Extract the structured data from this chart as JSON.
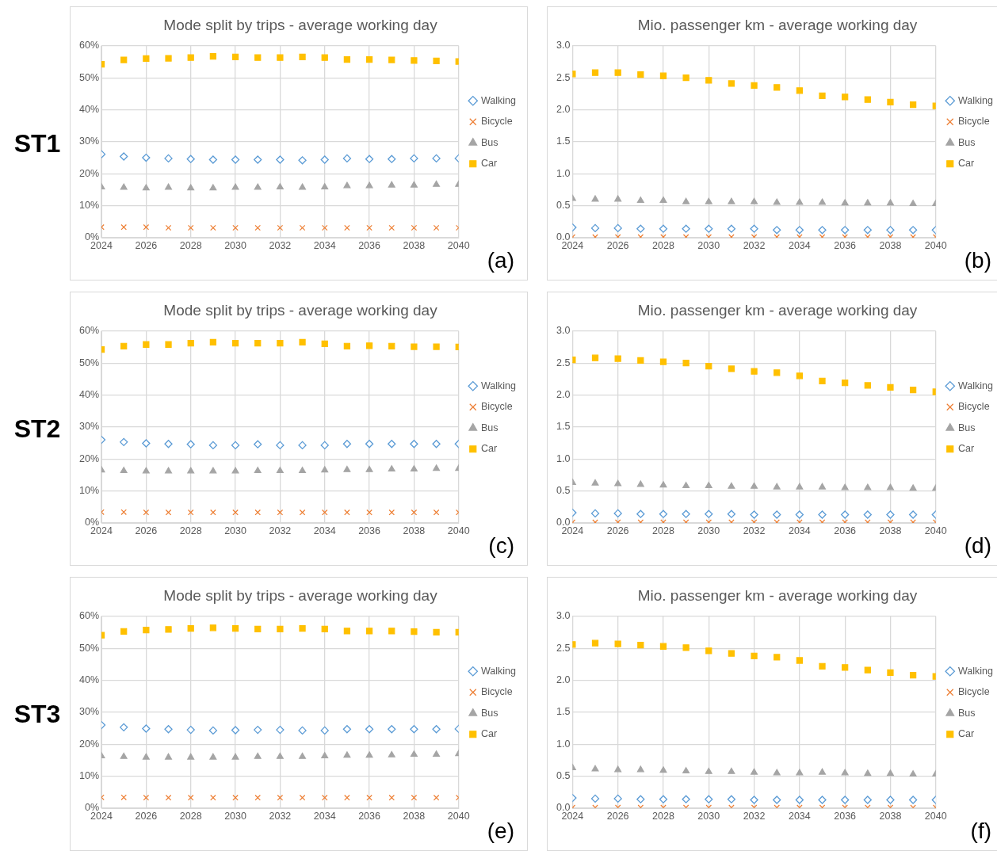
{
  "chart_data": [
    {
      "type": "scatter",
      "title": "Mode split by trips - average working day",
      "annotations": [
        "ST1",
        "(a)"
      ],
      "x": [
        2024,
        2025,
        2026,
        2027,
        2028,
        2029,
        2030,
        2031,
        2032,
        2033,
        2034,
        2035,
        2036,
        2037,
        2038,
        2039,
        2040
      ],
      "xlim": [
        2024,
        2040
      ],
      "xticks": [
        2024,
        2026,
        2028,
        2030,
        2032,
        2034,
        2036,
        2038,
        2040
      ],
      "ylim": [
        0,
        60
      ],
      "yticks": [
        {
          "value": 0,
          "label": "0%"
        },
        {
          "value": 10,
          "label": "10%"
        },
        {
          "value": 20,
          "label": "20%"
        },
        {
          "value": 30,
          "label": "30%"
        },
        {
          "value": 40,
          "label": "40%"
        },
        {
          "value": 50,
          "label": "50%"
        },
        {
          "value": 60,
          "label": "60%"
        }
      ],
      "grid": true,
      "legend": "right",
      "series": [
        {
          "name": "Walking",
          "color": "#5b9bd5",
          "marker": "diamond",
          "values": [
            26.1,
            25.4,
            25.0,
            24.8,
            24.6,
            24.4,
            24.4,
            24.4,
            24.4,
            24.2,
            24.4,
            24.8,
            24.6,
            24.6,
            24.8,
            24.8,
            24.8
          ]
        },
        {
          "name": "Bicycle",
          "color": "#ed7d31",
          "marker": "cross",
          "values": [
            3.3,
            3.3,
            3.3,
            3.1,
            3.1,
            3.1,
            3.1,
            3.1,
            3.1,
            3.1,
            3.1,
            3.1,
            3.1,
            3.1,
            3.1,
            3.1,
            3.1
          ]
        },
        {
          "name": "Bus",
          "color": "#a5a5a5",
          "marker": "triangle",
          "values": [
            15.8,
            15.7,
            15.5,
            15.7,
            15.5,
            15.5,
            15.7,
            15.7,
            15.8,
            15.7,
            15.8,
            16.2,
            16.2,
            16.4,
            16.4,
            16.6,
            16.6
          ]
        },
        {
          "name": "Car",
          "color": "#ffc000",
          "marker": "square",
          "values": [
            54.2,
            55.6,
            56.0,
            56.1,
            56.3,
            56.7,
            56.5,
            56.3,
            56.3,
            56.5,
            56.3,
            55.7,
            55.7,
            55.6,
            55.4,
            55.3,
            55.1
          ]
        }
      ]
    },
    {
      "type": "scatter",
      "title": "Mio. passenger km - average working day",
      "annotations": [
        "(b)"
      ],
      "x": [
        2024,
        2025,
        2026,
        2027,
        2028,
        2029,
        2030,
        2031,
        2032,
        2033,
        2034,
        2035,
        2036,
        2037,
        2038,
        2039,
        2040
      ],
      "xlim": [
        2024,
        2040
      ],
      "xticks": [
        2024,
        2026,
        2028,
        2030,
        2032,
        2034,
        2036,
        2038,
        2040
      ],
      "ylim": [
        0,
        3
      ],
      "yticks": [
        {
          "value": 0,
          "label": "0.0"
        },
        0.5,
        {
          "value": 1,
          "label": "1.0"
        },
        1.5,
        {
          "value": 2,
          "label": "2.0"
        },
        2.5,
        {
          "value": 3,
          "label": "3.0"
        }
      ],
      "grid": true,
      "legend": "right",
      "series": [
        {
          "name": "Walking",
          "color": "#5b9bd5",
          "marker": "diamond",
          "values": [
            0.16,
            0.15,
            0.15,
            0.14,
            0.14,
            0.14,
            0.14,
            0.14,
            0.14,
            0.12,
            0.12,
            0.12,
            0.12,
            0.12,
            0.12,
            0.12,
            0.12
          ]
        },
        {
          "name": "Bicycle",
          "color": "#ed7d31",
          "marker": "cross",
          "values": [
            0.01,
            0.01,
            0.01,
            0.01,
            0.01,
            0.01,
            0.01,
            0.01,
            0.01,
            0.01,
            0.01,
            0.01,
            0.01,
            0.01,
            0.01,
            0.01,
            0.01
          ]
        },
        {
          "name": "Bus",
          "color": "#a5a5a5",
          "marker": "triangle",
          "values": [
            0.61,
            0.6,
            0.6,
            0.58,
            0.58,
            0.56,
            0.56,
            0.56,
            0.56,
            0.55,
            0.55,
            0.55,
            0.54,
            0.54,
            0.54,
            0.53,
            0.53
          ]
        },
        {
          "name": "Car",
          "color": "#ffc000",
          "marker": "square",
          "values": [
            2.56,
            2.58,
            2.58,
            2.55,
            2.53,
            2.5,
            2.46,
            2.41,
            2.38,
            2.35,
            2.3,
            2.22,
            2.2,
            2.16,
            2.12,
            2.08,
            2.06
          ]
        }
      ]
    },
    {
      "type": "scatter",
      "title": "Mode split by trips - average working day",
      "annotations": [
        "ST2",
        "(c)"
      ],
      "x": [
        2024,
        2025,
        2026,
        2027,
        2028,
        2029,
        2030,
        2031,
        2032,
        2033,
        2034,
        2035,
        2036,
        2037,
        2038,
        2039,
        2040
      ],
      "xlim": [
        2024,
        2040
      ],
      "xticks": [
        2024,
        2026,
        2028,
        2030,
        2032,
        2034,
        2036,
        2038,
        2040
      ],
      "ylim": [
        0,
        60
      ],
      "yticks": [
        {
          "value": 0,
          "label": "0%"
        },
        {
          "value": 10,
          "label": "10%"
        },
        {
          "value": 20,
          "label": "20%"
        },
        {
          "value": 30,
          "label": "30%"
        },
        {
          "value": 40,
          "label": "40%"
        },
        {
          "value": 50,
          "label": "50%"
        },
        {
          "value": 60,
          "label": "60%"
        }
      ],
      "grid": true,
      "legend": "right",
      "series": [
        {
          "name": "Walking",
          "color": "#5b9bd5",
          "marker": "diamond",
          "values": [
            26.0,
            25.3,
            24.9,
            24.7,
            24.6,
            24.3,
            24.3,
            24.6,
            24.3,
            24.3,
            24.3,
            24.7,
            24.7,
            24.7,
            24.7,
            24.7,
            24.7
          ]
        },
        {
          "name": "Bicycle",
          "color": "#ed7d31",
          "marker": "cross",
          "values": [
            3.4,
            3.4,
            3.3,
            3.3,
            3.3,
            3.3,
            3.3,
            3.3,
            3.3,
            3.3,
            3.3,
            3.3,
            3.3,
            3.3,
            3.3,
            3.3,
            3.3
          ]
        },
        {
          "name": "Bus",
          "color": "#a5a5a5",
          "marker": "triangle",
          "values": [
            16.5,
            16.3,
            16.2,
            16.2,
            16.2,
            16.2,
            16.2,
            16.3,
            16.3,
            16.3,
            16.5,
            16.6,
            16.6,
            16.8,
            16.8,
            17.0,
            17.0
          ]
        },
        {
          "name": "Car",
          "color": "#ffc000",
          "marker": "square",
          "values": [
            54.2,
            55.3,
            55.8,
            55.8,
            56.2,
            56.5,
            56.2,
            56.2,
            56.2,
            56.5,
            56.0,
            55.3,
            55.4,
            55.3,
            55.1,
            55.1,
            55.0
          ]
        }
      ]
    },
    {
      "type": "scatter",
      "title": "Mio. passenger km - average working day",
      "annotations": [
        "(d)"
      ],
      "x": [
        2024,
        2025,
        2026,
        2027,
        2028,
        2029,
        2030,
        2031,
        2032,
        2033,
        2034,
        2035,
        2036,
        2037,
        2038,
        2039,
        2040
      ],
      "xlim": [
        2024,
        2040
      ],
      "xticks": [
        2024,
        2026,
        2028,
        2030,
        2032,
        2034,
        2036,
        2038,
        2040
      ],
      "ylim": [
        0,
        3
      ],
      "yticks": [
        {
          "value": 0,
          "label": "0.0"
        },
        0.5,
        {
          "value": 1,
          "label": "1.0"
        },
        1.5,
        {
          "value": 2,
          "label": "2.0"
        },
        2.5,
        {
          "value": 3,
          "label": "3.0"
        }
      ],
      "grid": true,
      "legend": "right",
      "series": [
        {
          "name": "Walking",
          "color": "#5b9bd5",
          "marker": "diamond",
          "values": [
            0.16,
            0.15,
            0.15,
            0.14,
            0.14,
            0.14,
            0.14,
            0.14,
            0.13,
            0.13,
            0.13,
            0.13,
            0.13,
            0.13,
            0.13,
            0.13,
            0.13
          ]
        },
        {
          "name": "Bicycle",
          "color": "#ed7d31",
          "marker": "cross",
          "values": [
            0.01,
            0.01,
            0.01,
            0.01,
            0.01,
            0.01,
            0.01,
            0.01,
            0.01,
            0.01,
            0.01,
            0.01,
            0.01,
            0.01,
            0.01,
            0.01,
            0.01
          ]
        },
        {
          "name": "Bus",
          "color": "#a5a5a5",
          "marker": "triangle",
          "values": [
            0.63,
            0.62,
            0.61,
            0.6,
            0.59,
            0.58,
            0.58,
            0.57,
            0.57,
            0.56,
            0.56,
            0.56,
            0.55,
            0.55,
            0.55,
            0.54,
            0.54
          ]
        },
        {
          "name": "Car",
          "color": "#ffc000",
          "marker": "square",
          "values": [
            2.55,
            2.58,
            2.57,
            2.54,
            2.52,
            2.5,
            2.45,
            2.41,
            2.37,
            2.35,
            2.3,
            2.22,
            2.19,
            2.15,
            2.12,
            2.08,
            2.05
          ]
        }
      ]
    },
    {
      "type": "scatter",
      "title": "Mode split by trips - average working day",
      "annotations": [
        "ST3",
        "(e)"
      ],
      "x": [
        2024,
        2025,
        2026,
        2027,
        2028,
        2029,
        2030,
        2031,
        2032,
        2033,
        2034,
        2035,
        2036,
        2037,
        2038,
        2039,
        2040
      ],
      "xlim": [
        2024,
        2040
      ],
      "xticks": [
        2024,
        2026,
        2028,
        2030,
        2032,
        2034,
        2036,
        2038,
        2040
      ],
      "ylim": [
        0,
        60
      ],
      "yticks": [
        {
          "value": 0,
          "label": "0%"
        },
        {
          "value": 10,
          "label": "10%"
        },
        {
          "value": 20,
          "label": "20%"
        },
        {
          "value": 30,
          "label": "30%"
        },
        {
          "value": 40,
          "label": "40%"
        },
        {
          "value": 50,
          "label": "50%"
        },
        {
          "value": 60,
          "label": "60%"
        }
      ],
      "grid": true,
      "legend": "right",
      "series": [
        {
          "name": "Walking",
          "color": "#5b9bd5",
          "marker": "diamond",
          "values": [
            26.0,
            25.3,
            24.9,
            24.7,
            24.5,
            24.3,
            24.4,
            24.5,
            24.5,
            24.3,
            24.3,
            24.7,
            24.7,
            24.7,
            24.7,
            24.7,
            24.8
          ]
        },
        {
          "name": "Bicycle",
          "color": "#ed7d31",
          "marker": "cross",
          "values": [
            3.4,
            3.4,
            3.3,
            3.3,
            3.3,
            3.3,
            3.3,
            3.3,
            3.3,
            3.3,
            3.3,
            3.3,
            3.3,
            3.3,
            3.3,
            3.3,
            3.3
          ]
        },
        {
          "name": "Bus",
          "color": "#a5a5a5",
          "marker": "triangle",
          "values": [
            16.3,
            16.1,
            15.9,
            15.9,
            15.9,
            15.9,
            15.9,
            16.1,
            16.1,
            16.1,
            16.3,
            16.5,
            16.5,
            16.6,
            16.8,
            16.8,
            17.0
          ]
        },
        {
          "name": "Car",
          "color": "#ffc000",
          "marker": "square",
          "values": [
            54.1,
            55.3,
            55.7,
            55.9,
            56.2,
            56.4,
            56.2,
            56.0,
            56.0,
            56.2,
            56.0,
            55.4,
            55.4,
            55.4,
            55.2,
            55.0,
            55.0
          ]
        }
      ]
    },
    {
      "type": "scatter",
      "title": "Mio. passenger km - average working day",
      "annotations": [
        "(f)"
      ],
      "x": [
        2024,
        2025,
        2026,
        2027,
        2028,
        2029,
        2030,
        2031,
        2032,
        2033,
        2034,
        2035,
        2036,
        2037,
        2038,
        2039,
        2040
      ],
      "xlim": [
        2024,
        2040
      ],
      "xticks": [
        2024,
        2026,
        2028,
        2030,
        2032,
        2034,
        2036,
        2038,
        2040
      ],
      "ylim": [
        0,
        3
      ],
      "yticks": [
        {
          "value": 0,
          "label": "0.0"
        },
        0.5,
        {
          "value": 1,
          "label": "1.0"
        },
        1.5,
        {
          "value": 2,
          "label": "2.0"
        },
        2.5,
        {
          "value": 3,
          "label": "3.0"
        }
      ],
      "grid": true,
      "legend": "right",
      "series": [
        {
          "name": "Walking",
          "color": "#5b9bd5",
          "marker": "diamond",
          "values": [
            0.16,
            0.15,
            0.15,
            0.14,
            0.14,
            0.14,
            0.14,
            0.14,
            0.13,
            0.13,
            0.13,
            0.13,
            0.13,
            0.13,
            0.13,
            0.13,
            0.13
          ]
        },
        {
          "name": "Bicycle",
          "color": "#ed7d31",
          "marker": "cross",
          "values": [
            0.01,
            0.01,
            0.01,
            0.01,
            0.01,
            0.01,
            0.01,
            0.01,
            0.01,
            0.01,
            0.01,
            0.01,
            0.01,
            0.01,
            0.01,
            0.01,
            0.01
          ]
        },
        {
          "name": "Bus",
          "color": "#a5a5a5",
          "marker": "triangle",
          "values": [
            0.63,
            0.61,
            0.6,
            0.6,
            0.59,
            0.58,
            0.57,
            0.57,
            0.56,
            0.55,
            0.55,
            0.56,
            0.55,
            0.54,
            0.54,
            0.53,
            0.53
          ]
        },
        {
          "name": "Car",
          "color": "#ffc000",
          "marker": "square",
          "values": [
            2.56,
            2.58,
            2.57,
            2.55,
            2.53,
            2.51,
            2.46,
            2.42,
            2.38,
            2.36,
            2.31,
            2.22,
            2.2,
            2.16,
            2.12,
            2.08,
            2.06
          ]
        }
      ]
    }
  ]
}
